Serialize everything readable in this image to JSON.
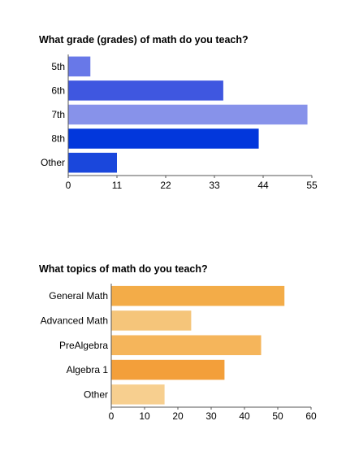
{
  "chart_data": [
    {
      "type": "bar",
      "orientation": "horizontal",
      "title": "What grade (grades) of math do you teach?",
      "xlabel": "",
      "ylabel": "",
      "categories": [
        "5th",
        "6th",
        "7th",
        "8th",
        "Other"
      ],
      "values": [
        5,
        35,
        54,
        43,
        11
      ],
      "xlim": [
        0,
        55
      ],
      "xticks": [
        "0",
        "11",
        "22",
        "33",
        "44",
        "55"
      ],
      "colors": [
        "#6878e8",
        "#3f57e0",
        "#8792ea",
        "#0237dc",
        "#1a47dc"
      ],
      "grid": false,
      "legend": "none"
    },
    {
      "type": "bar",
      "orientation": "horizontal",
      "title": "What topics of math do you teach?",
      "xlabel": "",
      "ylabel": "",
      "categories": [
        "General Math",
        "Advanced Math",
        "PreAlgebra",
        "Algebra 1",
        "Other"
      ],
      "values": [
        52,
        24,
        45,
        34,
        16
      ],
      "xlim": [
        0,
        60
      ],
      "xticks": [
        "0",
        "10",
        "20",
        "30",
        "40",
        "50",
        "60"
      ],
      "colors": [
        "#f3ac48",
        "#f5c57a",
        "#f5b55b",
        "#f39f3a",
        "#f7cf8f"
      ],
      "grid": false,
      "legend": "none"
    }
  ]
}
